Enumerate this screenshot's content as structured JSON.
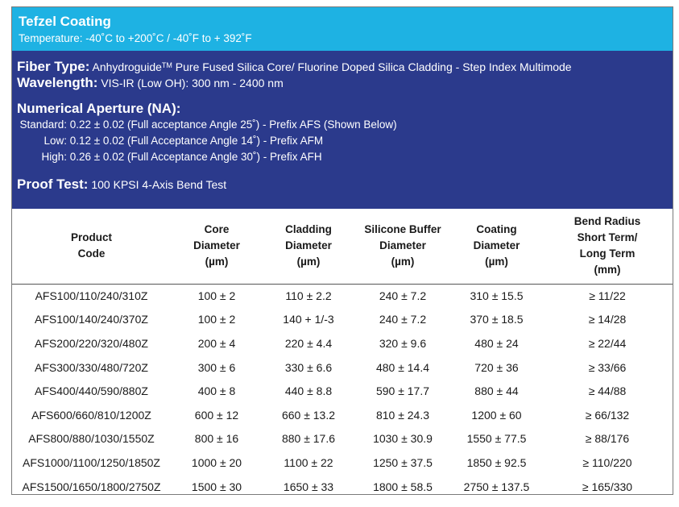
{
  "header": {
    "title": "Tefzel Coating",
    "temperature": "Temperature:  -40˚C to +200˚C / -40˚F to + 392˚F"
  },
  "specs": {
    "fiber_type_label": "Fiber Type:",
    "fiber_type_brand": "Anhydroguide",
    "fiber_type_tm": "TM",
    "fiber_type_value": " Pure Fused Silica Core/ Fluorine Doped Silica Cladding - Step Index Multimode",
    "wavelength_label": "Wavelength:",
    "wavelength_value": "  VIS-IR (Low OH): 300 nm - 2400 nm",
    "na_title": "Numerical Aperture (NA):",
    "na": [
      {
        "key": "Standard:",
        "value": " 0.22 ± 0.02 (Full acceptance Angle 25˚) - Prefix AFS (Shown Below)"
      },
      {
        "key": "Low:",
        "value": " 0.12 ± 0.02 (Full Acceptance Angle 14˚) - Prefix AFM"
      },
      {
        "key": "High:",
        "value": " 0.26 ± 0.02 (Full Acceptance Angle 30˚) - Prefix AFH"
      }
    ],
    "proof_label": "Proof Test:",
    "proof_value": " 100 KPSI 4-Axis Bend Test"
  },
  "table": {
    "headers": [
      [
        "Product",
        "Code"
      ],
      [
        "Core",
        "Diameter",
        "(µm)"
      ],
      [
        "Cladding",
        "Diameter",
        "(µm)"
      ],
      [
        "Silicone Buffer",
        "Diameter",
        "(µm)"
      ],
      [
        "Coating",
        "Diameter",
        "(µm)"
      ],
      [
        "Bend Radius",
        "Short Term/",
        "Long Term",
        "(mm)"
      ]
    ],
    "rows": [
      [
        "AFS100/110/240/310Z",
        "100 ± 2",
        "110 ± 2.2",
        "240 ± 7.2",
        "310 ± 15.5",
        "≥ 11/22"
      ],
      [
        "AFS100/140/240/370Z",
        "100 ± 2",
        "140 + 1/-3",
        "240 ± 7.2",
        "370 ± 18.5",
        "≥ 14/28"
      ],
      [
        "AFS200/220/320/480Z",
        "200 ± 4",
        "220 ± 4.4",
        "320 ± 9.6",
        "480 ± 24",
        "≥ 22/44"
      ],
      [
        "AFS300/330/480/720Z",
        "300 ± 6",
        "330 ± 6.6",
        "480 ± 14.4",
        "720 ± 36",
        "≥ 33/66"
      ],
      [
        "AFS400/440/590/880Z",
        "400 ± 8",
        "440 ± 8.8",
        "590 ± 17.7",
        "880 ± 44",
        "≥ 44/88"
      ],
      [
        "AFS600/660/810/1200Z",
        "600 ± 12",
        "660 ± 13.2",
        "810 ± 24.3",
        "1200 ± 60",
        "≥ 66/132"
      ],
      [
        "AFS800/880/1030/1550Z",
        "800 ± 16",
        "880 ± 17.6",
        "1030 ± 30.9",
        "1550 ± 77.5",
        "≥ 88/176"
      ],
      [
        "AFS1000/1100/1250/1850Z",
        "1000 ± 20",
        "1100 ± 22",
        "1250 ± 37.5",
        "1850 ± 92.5",
        "≥ 110/220"
      ],
      [
        "AFS1500/1650/1800/2750Z",
        "1500 ± 30",
        "1650 ± 33",
        "1800 ± 58.5",
        "2750 ± 137.5",
        "≥ 165/330"
      ]
    ]
  }
}
